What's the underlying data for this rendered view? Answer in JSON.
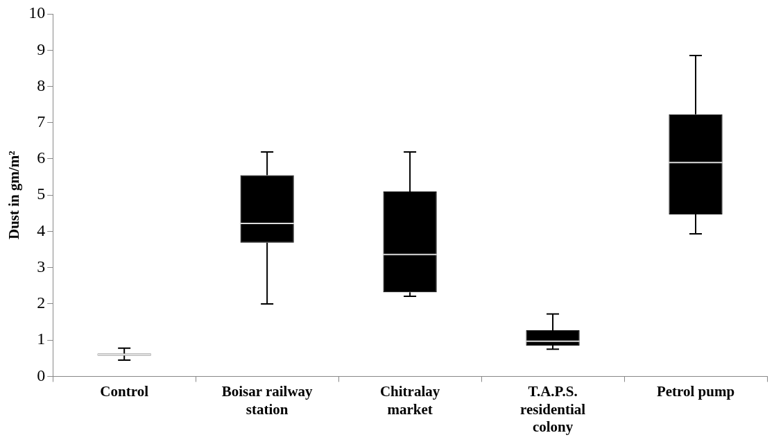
{
  "chart_data": {
    "type": "box",
    "ylabel": "Dust in gm/m²",
    "categories": [
      "Control",
      "Boisar railway station",
      "Chitralay market",
      "T.A.P.S. residential colony",
      "Petrol pump"
    ],
    "boxes": [
      {
        "low": 0.45,
        "q1": 0.57,
        "median": 0.6,
        "q3": 0.63,
        "high": 0.78
      },
      {
        "low": 2.0,
        "q1": 3.69,
        "median": 4.22,
        "q3": 5.55,
        "high": 6.19
      },
      {
        "low": 2.21,
        "q1": 2.32,
        "median": 3.36,
        "q3": 5.1,
        "high": 6.19
      },
      {
        "low": 0.75,
        "q1": 0.85,
        "median": 0.97,
        "q3": 1.27,
        "high": 1.72
      },
      {
        "low": 3.93,
        "q1": 4.47,
        "median": 5.9,
        "q3": 7.23,
        "high": 8.85
      }
    ],
    "color": "#000000",
    "ylim": [
      0,
      10
    ],
    "yticks": [
      0,
      1,
      2,
      3,
      4,
      5,
      6,
      7,
      8,
      9,
      10
    ],
    "grid": false
  }
}
